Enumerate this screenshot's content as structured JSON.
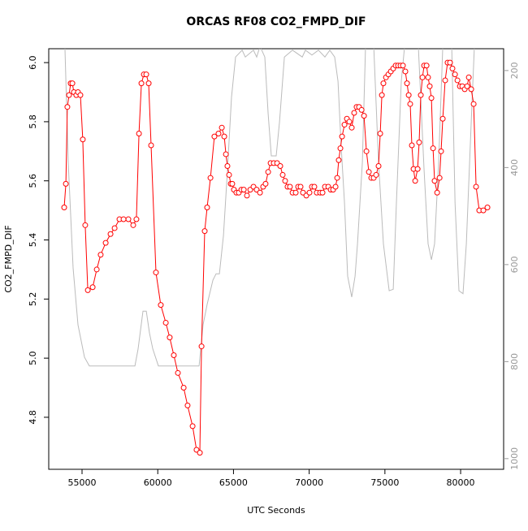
{
  "chart_data": {
    "type": "line",
    "title": "ORCAS RF08 CO2_FMPD_DIF",
    "xlabel": "UTC Seconds",
    "ylabel": "CO2_FMPD_DIF",
    "xlim": [
      52800,
      82840
    ],
    "ylim": [
      4.624,
      6.047
    ],
    "y2lim": [
      1022,
      155
    ],
    "xticks": [
      55000,
      60000,
      65000,
      70000,
      75000,
      80000
    ],
    "yticks": [
      4.8,
      {
        "value": 5,
        "label": "5.0"
      },
      5.2,
      5.4,
      5.6,
      5.8,
      {
        "value": 6,
        "label": "6.0"
      }
    ],
    "y2ticks": [
      200,
      400,
      600,
      800,
      1000
    ],
    "series": [
      {
        "color": "#ff0000",
        "markers": true,
        "x": [
          53820,
          53930,
          54030,
          54140,
          54250,
          54360,
          54460,
          54620,
          54730,
          54890,
          55050,
          55210,
          55380,
          55700,
          55970,
          56230,
          56560,
          56880,
          57150,
          57470,
          57740,
          58060,
          58380,
          58590,
          58760,
          58920,
          59080,
          59240,
          59400,
          59560,
          59880,
          60200,
          60530,
          60790,
          61060,
          61330,
          61710,
          61970,
          62300,
          62560,
          62780,
          62890,
          63100,
          63260,
          63480,
          63740,
          64010,
          64230,
          64390,
          64500,
          64600,
          64710,
          64820,
          64920,
          65030,
          65190,
          65350,
          65520,
          65680,
          65890,
          66110,
          66320,
          66530,
          66750,
          66960,
          67120,
          67290,
          67450,
          67660,
          67880,
          68090,
          68250,
          68410,
          68570,
          68730,
          68900,
          69110,
          69270,
          69430,
          69590,
          69810,
          70020,
          70180,
          70340,
          70500,
          70720,
          70880,
          71040,
          71260,
          71420,
          71580,
          71740,
          71850,
          71950,
          72060,
          72170,
          72330,
          72490,
          72650,
          72810,
          72970,
          73130,
          73290,
          73460,
          73620,
          73780,
          73940,
          74100,
          74260,
          74420,
          74580,
          74690,
          74800,
          74900,
          75070,
          75230,
          75390,
          75550,
          75710,
          75870,
          76030,
          76190,
          76350,
          76460,
          76570,
          76670,
          76780,
          76890,
          77000,
          77160,
          77260,
          77370,
          77480,
          77590,
          77750,
          77850,
          77960,
          78070,
          78180,
          78280,
          78450,
          78610,
          78710,
          78820,
          78980,
          79140,
          79300,
          79460,
          79630,
          79790,
          79950,
          80110,
          80270,
          80430,
          80540,
          80700,
          80860,
          81020,
          81230,
          81500,
          81770
        ],
        "values": [
          5.51,
          5.59,
          5.85,
          5.89,
          5.93,
          5.93,
          5.9,
          5.89,
          5.9,
          5.89,
          5.74,
          5.45,
          5.23,
          5.24,
          5.3,
          5.35,
          5.39,
          5.42,
          5.44,
          5.47,
          5.47,
          5.47,
          5.45,
          5.47,
          5.76,
          5.93,
          5.96,
          5.96,
          5.93,
          5.72,
          5.29,
          5.18,
          5.12,
          5.07,
          5.01,
          4.95,
          4.9,
          4.84,
          4.77,
          4.69,
          4.68,
          5.04,
          5.43,
          5.51,
          5.61,
          5.75,
          5.76,
          5.78,
          5.75,
          5.69,
          5.65,
          5.62,
          5.59,
          5.59,
          5.57,
          5.56,
          5.56,
          5.57,
          5.57,
          5.55,
          5.57,
          5.58,
          5.57,
          5.56,
          5.58,
          5.59,
          5.63,
          5.66,
          5.66,
          5.66,
          5.65,
          5.62,
          5.6,
          5.58,
          5.58,
          5.56,
          5.56,
          5.58,
          5.58,
          5.56,
          5.55,
          5.56,
          5.58,
          5.58,
          5.56,
          5.56,
          5.56,
          5.58,
          5.58,
          5.57,
          5.57,
          5.58,
          5.61,
          5.67,
          5.71,
          5.75,
          5.79,
          5.81,
          5.8,
          5.78,
          5.83,
          5.85,
          5.85,
          5.84,
          5.82,
          5.7,
          5.63,
          5.61,
          5.61,
          5.62,
          5.65,
          5.76,
          5.89,
          5.93,
          5.95,
          5.96,
          5.97,
          5.98,
          5.99,
          5.99,
          5.99,
          5.99,
          5.97,
          5.93,
          5.89,
          5.86,
          5.72,
          5.64,
          5.6,
          5.64,
          5.73,
          5.89,
          5.95,
          5.99,
          5.99,
          5.95,
          5.92,
          5.88,
          5.71,
          5.6,
          5.56,
          5.61,
          5.7,
          5.81,
          5.94,
          6.0,
          6.0,
          5.98,
          5.96,
          5.94,
          5.92,
          5.92,
          5.91,
          5.92,
          5.95,
          5.91,
          5.86,
          5.58,
          5.5,
          5.5,
          5.51
        ]
      },
      {
        "color": "#bbbbbb",
        "axis": "y2",
        "markers": false,
        "x": [
          53870,
          54090,
          54410,
          54730,
          55160,
          55480,
          56020,
          58490,
          58700,
          59020,
          59240,
          59450,
          59670,
          60040,
          62730,
          62990,
          63260,
          63640,
          63850,
          64070,
          64340,
          64600,
          64870,
          65140,
          65570,
          65780,
          66320,
          66530,
          66750,
          67070,
          67290,
          67500,
          67820,
          68040,
          68360,
          68900,
          69540,
          69750,
          70180,
          70610,
          71040,
          71360,
          71680,
          71900,
          72110,
          72330,
          72540,
          72810,
          73030,
          73190,
          73510,
          73720,
          74260,
          74580,
          74900,
          75280,
          75550,
          75760,
          76080,
          76300,
          77210,
          77590,
          77850,
          78070,
          78280,
          78550,
          78820,
          79410,
          79630,
          79890,
          80160,
          80380,
          80700,
          80910
        ],
        "values": [
          150,
          389,
          607,
          724,
          791,
          809,
          809,
          809,
          774,
          696,
          696,
          741,
          774,
          809,
          809,
          724,
          682,
          632,
          619,
          619,
          540,
          406,
          255,
          172,
          158,
          172,
          158,
          172,
          150,
          172,
          289,
          376,
          376,
          306,
          172,
          158,
          172,
          158,
          168,
          158,
          172,
          158,
          172,
          222,
          356,
          473,
          624,
          667,
          624,
          557,
          389,
          150,
          150,
          389,
          557,
          654,
          651,
          473,
          222,
          150,
          150,
          406,
          557,
          590,
          557,
          389,
          150,
          150,
          473,
          654,
          660,
          557,
          306,
          150
        ]
      }
    ]
  }
}
